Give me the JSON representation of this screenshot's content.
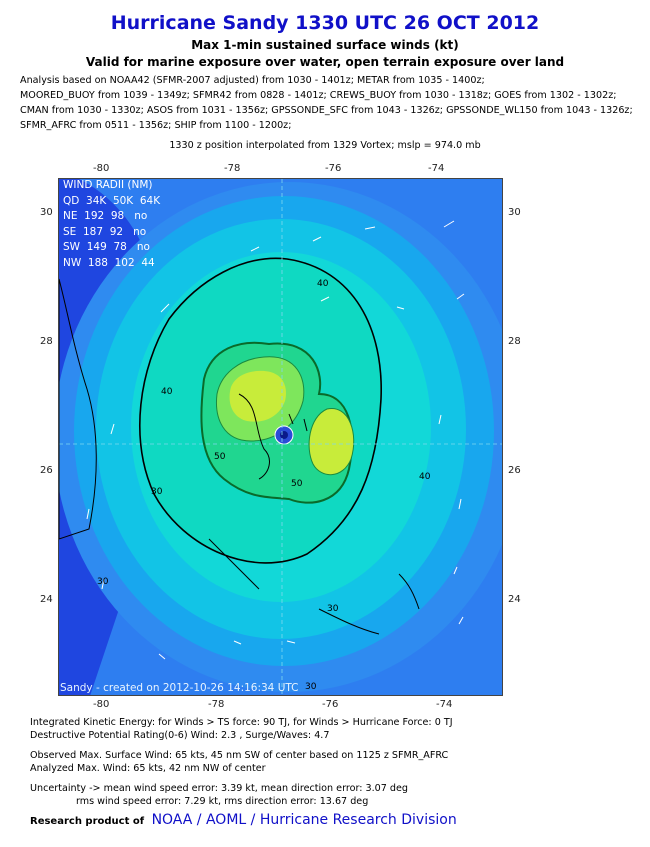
{
  "header": {
    "title": "Hurricane Sandy 1330 UTC 26 OCT 2012",
    "subtitle1": "Max 1-min sustained surface winds (kt)",
    "subtitle2": "Valid for marine exposure over water, open terrain exposure over land"
  },
  "analysis_lines": [
    "Analysis based on NOAA42 (SFMR-2007 adjusted) from 1030 - 1401z; METAR from 1035 - 1400z;",
    "MOORED_BUOY from 1039 - 1349z; SFMR42 from 0828 - 1401z; CREWS_BUOY from 1030 - 1318z; GOES from 1302 - 1302z;",
    "CMAN from 1030 - 1330z; ASOS from 1031 - 1356z; GPSSONDE_SFC from 1043 - 1326z; GPSSONDE_WL150 from 1043 - 1326z;",
    "SFMR_AFRC from 0511 - 1356z; SHIP from 1100 - 1200z;"
  ],
  "position_note": "1330 z position interpolated from 1329 Vortex; mslp = 974.0 mb",
  "map": {
    "lon_ticks": [
      "-80",
      "-78",
      "-76",
      "-74"
    ],
    "lat_ticks": [
      "30",
      "28",
      "26",
      "24"
    ],
    "contour_labels": [
      "40",
      "30",
      "40",
      "50",
      "30",
      "40",
      "50",
      "30",
      "30"
    ],
    "wind_radii": {
      "title": "WIND RADII (NM)",
      "header": "QD  34K  50K  64K",
      "rows": [
        "NE  192  98   no",
        "SE  187  92   no",
        "SW  149  78   no",
        "NW  188  102  44"
      ]
    },
    "stamp": "Sandy - created on 2012-10-26 14:16:34 UTC"
  },
  "footer": {
    "ike": "Integrated Kinetic Energy: for Winds > TS force: 90 TJ, for Winds > Hurricane Force: 0 TJ",
    "dpr": "Destructive Potential Rating(0-6)  Wind: 2.3 , Surge/Waves: 4.7",
    "obs": "Observed Max. Surface Wind: 65 kts, 45 nm SW of center based on 1125 z SFMR_AFRC",
    "analyzed": "Analyzed Max. Wind: 65 kts, 42 nm  NW of center",
    "uncert1": "Uncertainty -> mean wind speed error: 3.39 kt, mean direction error: 3.07 deg",
    "uncert2": "rms wind speed error: 7.29 kt, rms direction error: 13.67 deg",
    "research_label": "Research product of",
    "research_links": "NOAA / AOML / Hurricane Research Division"
  }
}
